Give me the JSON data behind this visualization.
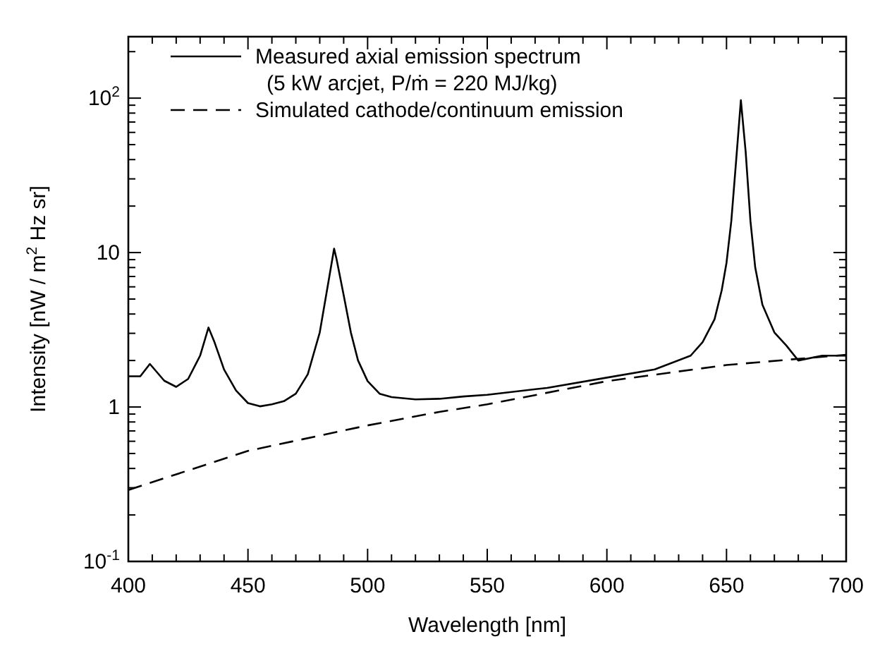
{
  "chart_data": {
    "type": "line",
    "xlabel": "Wavelength [nm]",
    "ylabel": "Intensity [nW / m$^{2}$ Hz sr]",
    "log": "y",
    "grid": false,
    "legend": "top left",
    "xlim": [
      400,
      700
    ],
    "ylim": [
      0.1,
      250
    ],
    "xticks": [
      400,
      {
        "value": 410,
        "label": null
      },
      {
        "value": 420,
        "label": null
      },
      {
        "value": 430,
        "label": null
      },
      {
        "value": 440,
        "label": null
      },
      450,
      {
        "value": 460,
        "label": null
      },
      {
        "value": 470,
        "label": null
      },
      {
        "value": 480,
        "label": null
      },
      {
        "value": 490,
        "label": null
      },
      500,
      {
        "value": 510,
        "label": null
      },
      {
        "value": 520,
        "label": null
      },
      {
        "value": 530,
        "label": null
      },
      {
        "value": 540,
        "label": null
      },
      550,
      {
        "value": 560,
        "label": null
      },
      {
        "value": 570,
        "label": null
      },
      {
        "value": 580,
        "label": null
      },
      {
        "value": 590,
        "label": null
      },
      600,
      {
        "value": 610,
        "label": null
      },
      {
        "value": 620,
        "label": null
      },
      {
        "value": 630,
        "label": null
      },
      {
        "value": 640,
        "label": null
      },
      650,
      {
        "value": 660,
        "label": null
      },
      {
        "value": 670,
        "label": null
      },
      {
        "value": 680,
        "label": null
      },
      {
        "value": 690,
        "label": null
      },
      700
    ],
    "yticks": [
      {
        "value": 0.1,
        "label": "10$^{-1}$"
      },
      {
        "value": 0.2,
        "label": null
      },
      {
        "value": 0.3,
        "label": null
      },
      {
        "value": 0.4,
        "label": null
      },
      {
        "value": 0.5,
        "label": null
      },
      {
        "value": 0.6,
        "label": null
      },
      {
        "value": 0.7,
        "label": null
      },
      {
        "value": 0.8,
        "label": null
      },
      {
        "value": 0.9,
        "label": null
      },
      1,
      {
        "value": 2,
        "label": null
      },
      {
        "value": 3,
        "label": null
      },
      {
        "value": 4,
        "label": null
      },
      {
        "value": 5,
        "label": null
      },
      {
        "value": 6,
        "label": null
      },
      {
        "value": 7,
        "label": null
      },
      {
        "value": 8,
        "label": null
      },
      {
        "value": 9,
        "label": null
      },
      10,
      {
        "value": 20,
        "label": null
      },
      {
        "value": 30,
        "label": null
      },
      {
        "value": 40,
        "label": null
      },
      {
        "value": 50,
        "label": null
      },
      {
        "value": 60,
        "label": null
      },
      {
        "value": 70,
        "label": null
      },
      {
        "value": 80,
        "label": null
      },
      {
        "value": 90,
        "label": null
      },
      {
        "value": 100,
        "label": "10$^{2}$"
      },
      {
        "value": 200,
        "label": null
      }
    ],
    "series": [
      {
        "name": "Measured axial emission spectrum\n(5 kW arcjet, P/ṁ = 220 MJ/kg)",
        "color": "#000000",
        "line_style": "solid",
        "x": [
          400,
          405,
          409,
          415,
          420,
          425,
          430,
          433.5,
          436,
          440,
          445,
          450,
          455,
          460,
          465,
          470,
          475,
          480,
          484,
          486,
          487,
          490,
          493,
          496,
          500,
          505,
          510,
          520,
          530,
          540,
          550,
          575,
          600,
          620,
          635,
          640,
          645,
          648,
          650,
          652,
          654,
          656,
          658,
          660,
          662,
          665,
          670,
          675,
          680,
          690,
          700
        ],
        "values": [
          1.58,
          1.58,
          1.9,
          1.48,
          1.35,
          1.52,
          2.15,
          3.27,
          2.63,
          1.75,
          1.28,
          1.06,
          1.01,
          1.04,
          1.09,
          1.22,
          1.63,
          3.04,
          6.98,
          10.6,
          9.1,
          5.3,
          3.04,
          2.0,
          1.47,
          1.22,
          1.16,
          1.12,
          1.13,
          1.17,
          1.2,
          1.33,
          1.55,
          1.75,
          2.15,
          2.63,
          3.7,
          5.7,
          8.6,
          16,
          39,
          97,
          45,
          16,
          8,
          4.6,
          3.04,
          2.5,
          2.0,
          2.15,
          2.15
        ]
      },
      {
        "name": "Simulated cathode/continuum emission",
        "color": "#000000",
        "line_style": "dashed",
        "x": [
          400,
          450,
          500,
          530,
          550,
          600,
          650,
          700
        ],
        "values": [
          0.29,
          0.52,
          0.76,
          0.93,
          1.04,
          1.47,
          1.87,
          2.18
        ]
      }
    ]
  }
}
